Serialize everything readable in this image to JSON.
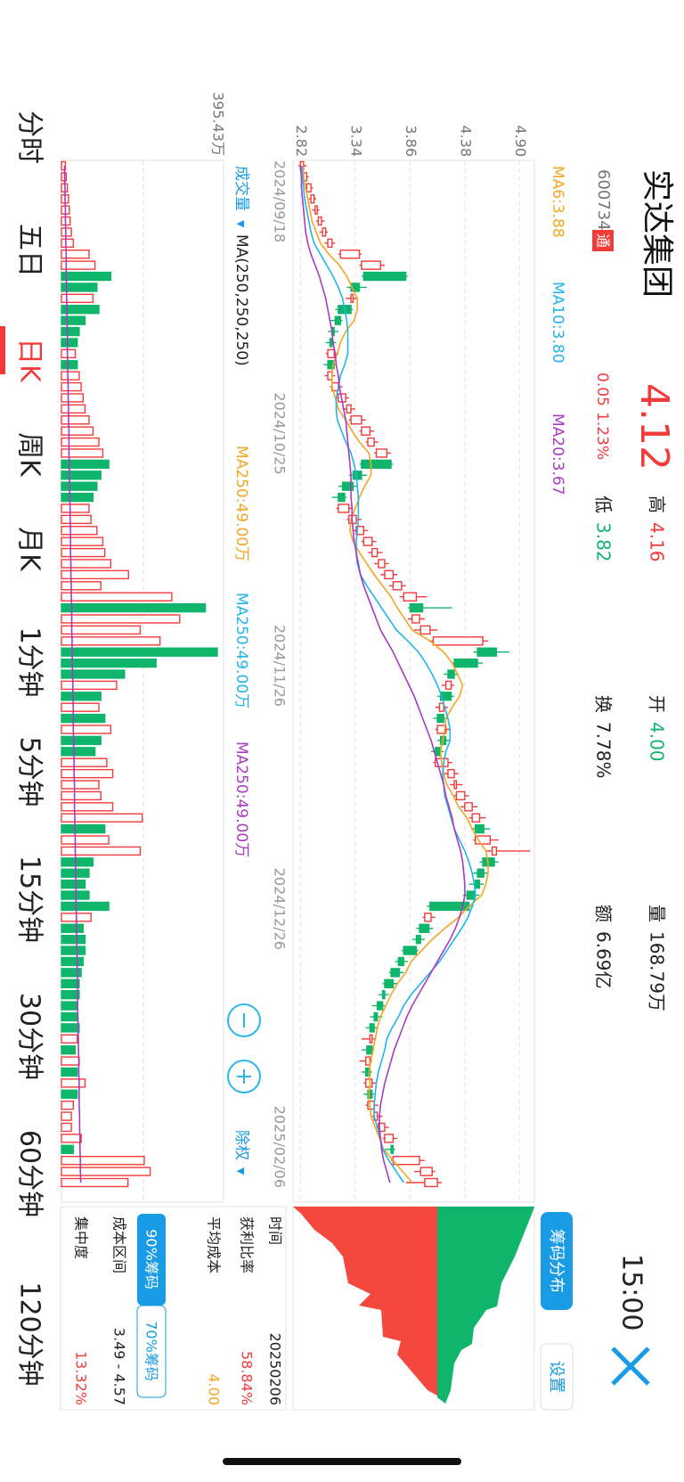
{
  "header": {
    "name": "实达集团",
    "code": "600734",
    "tag": "通",
    "price": "4.12",
    "change": "0.05",
    "change_pct": "1.23%",
    "high_label": "高",
    "high": "4.16",
    "low_label": "低",
    "low": "3.82",
    "open_label": "开",
    "open": "4.00",
    "turnover_label": "换",
    "turnover": "7.78%",
    "volume_label": "量",
    "volume": "168.79万",
    "amount_label": "额",
    "amount": "6.69亿",
    "time": "15:00"
  },
  "chart_data": [
    {
      "type": "candlestick",
      "x": [
        "2024/09/18",
        null,
        null,
        null,
        null,
        null,
        null,
        null,
        null,
        null,
        null,
        null,
        null,
        null,
        null,
        null,
        null,
        null,
        null,
        null,
        null,
        "2024/10/25",
        null,
        null,
        null,
        null,
        null,
        null,
        null,
        null,
        null,
        null,
        null,
        null,
        null,
        null,
        null,
        null,
        null,
        null,
        null,
        null,
        "2024/11/26",
        null,
        null,
        null,
        null,
        null,
        null,
        null,
        null,
        null,
        null,
        null,
        null,
        null,
        null,
        null,
        null,
        null,
        null,
        null,
        null,
        null,
        "2024/12/26",
        null,
        null,
        null,
        null,
        null,
        null,
        null,
        null,
        null,
        null,
        null,
        null,
        null,
        null,
        null,
        null,
        null,
        null,
        null,
        null,
        null,
        null,
        null,
        null,
        null,
        null,
        null,
        "2025/02/06"
      ],
      "candles": [
        [
          2.82,
          2.88,
          2.8,
          2.85
        ],
        [
          2.85,
          2.9,
          2.83,
          2.88
        ],
        [
          2.88,
          2.94,
          2.86,
          2.92
        ],
        [
          2.92,
          2.97,
          2.9,
          2.95
        ],
        [
          2.96,
          3.0,
          2.93,
          2.98
        ],
        [
          2.99,
          3.05,
          2.97,
          3.02
        ],
        [
          3.03,
          3.08,
          3.0,
          3.06
        ],
        [
          3.08,
          3.15,
          3.05,
          3.12
        ],
        [
          3.2,
          3.4,
          3.18,
          3.38
        ],
        [
          3.4,
          3.62,
          3.38,
          3.58
        ],
        [
          3.82,
          3.84,
          3.4,
          3.42
        ],
        [
          3.38,
          3.45,
          3.26,
          3.3
        ],
        [
          3.3,
          3.36,
          3.25,
          3.32
        ],
        [
          3.3,
          3.32,
          3.15,
          3.18
        ],
        [
          3.2,
          3.22,
          3.1,
          3.15
        ],
        [
          3.14,
          3.18,
          3.08,
          3.12
        ],
        [
          3.12,
          3.16,
          3.06,
          3.1
        ],
        [
          3.08,
          3.18,
          3.06,
          3.14
        ],
        [
          3.14,
          3.16,
          3.04,
          3.08
        ],
        [
          3.08,
          3.15,
          3.05,
          3.12
        ],
        [
          3.12,
          3.22,
          3.1,
          3.18
        ],
        [
          3.18,
          3.28,
          3.16,
          3.25
        ],
        [
          3.26,
          3.34,
          3.22,
          3.3
        ],
        [
          3.3,
          3.44,
          3.28,
          3.4
        ],
        [
          3.4,
          3.52,
          3.38,
          3.48
        ],
        [
          3.46,
          3.56,
          3.44,
          3.52
        ],
        [
          3.54,
          3.68,
          3.52,
          3.64
        ],
        [
          3.68,
          3.7,
          3.38,
          3.4
        ],
        [
          3.4,
          3.45,
          3.28,
          3.32
        ],
        [
          3.32,
          3.36,
          3.18,
          3.22
        ],
        [
          3.24,
          3.26,
          3.12,
          3.18
        ],
        [
          3.18,
          3.32,
          3.16,
          3.28
        ],
        [
          3.28,
          3.4,
          3.26,
          3.35
        ],
        [
          3.35,
          3.46,
          3.32,
          3.42
        ],
        [
          3.42,
          3.54,
          3.4,
          3.5
        ],
        [
          3.5,
          3.6,
          3.46,
          3.55
        ],
        [
          3.56,
          3.66,
          3.52,
          3.62
        ],
        [
          3.62,
          3.74,
          3.58,
          3.7
        ],
        [
          3.7,
          3.82,
          3.66,
          3.78
        ],
        [
          3.8,
          4.02,
          3.76,
          3.92
        ],
        [
          3.98,
          4.26,
          3.84,
          3.86
        ],
        [
          3.88,
          4.0,
          3.84,
          3.95
        ],
        [
          3.96,
          4.12,
          3.9,
          4.05
        ],
        [
          4.08,
          4.6,
          4.04,
          4.55
        ],
        [
          4.68,
          4.8,
          4.46,
          4.5
        ],
        [
          4.5,
          4.55,
          4.25,
          4.28
        ],
        [
          4.28,
          4.32,
          4.18,
          4.22
        ],
        [
          4.2,
          4.28,
          4.16,
          4.25
        ],
        [
          4.25,
          4.28,
          4.12,
          4.15
        ],
        [
          4.14,
          4.22,
          4.1,
          4.18
        ],
        [
          4.18,
          4.22,
          4.08,
          4.12
        ],
        [
          4.12,
          4.24,
          4.1,
          4.2
        ],
        [
          4.2,
          4.24,
          4.12,
          4.15
        ],
        [
          4.15,
          4.18,
          4.06,
          4.1
        ],
        [
          4.1,
          4.26,
          4.08,
          4.22
        ],
        [
          4.22,
          4.32,
          4.18,
          4.28
        ],
        [
          4.28,
          4.36,
          4.24,
          4.3
        ],
        [
          4.3,
          4.42,
          4.28,
          4.38
        ],
        [
          4.38,
          4.5,
          4.34,
          4.45
        ],
        [
          4.45,
          4.58,
          4.42,
          4.52
        ],
        [
          4.56,
          4.62,
          4.44,
          4.48
        ],
        [
          4.48,
          4.7,
          4.46,
          4.62
        ],
        [
          4.64,
          5.0,
          4.58,
          4.68
        ],
        [
          4.66,
          4.7,
          4.52,
          4.55
        ],
        [
          4.56,
          4.6,
          4.46,
          4.5
        ],
        [
          4.52,
          4.56,
          4.42,
          4.48
        ],
        [
          4.48,
          4.52,
          4.36,
          4.4
        ],
        [
          4.42,
          4.46,
          4.02,
          4.05
        ],
        [
          4.0,
          4.1,
          3.98,
          4.06
        ],
        [
          4.04,
          4.08,
          3.92,
          3.95
        ],
        [
          3.96,
          4.0,
          3.88,
          3.92
        ],
        [
          3.92,
          3.94,
          3.78,
          3.8
        ],
        [
          3.8,
          3.84,
          3.72,
          3.75
        ],
        [
          3.76,
          3.8,
          3.66,
          3.68
        ],
        [
          3.7,
          3.74,
          3.6,
          3.62
        ],
        [
          3.62,
          3.66,
          3.56,
          3.6
        ],
        [
          3.6,
          3.62,
          3.5,
          3.55
        ],
        [
          3.55,
          3.6,
          3.48,
          3.52
        ],
        [
          3.52,
          3.56,
          3.44,
          3.48
        ],
        [
          3.48,
          3.54,
          3.4,
          3.5
        ],
        [
          3.5,
          3.52,
          3.4,
          3.45
        ],
        [
          3.44,
          3.5,
          3.38,
          3.48
        ],
        [
          3.48,
          3.5,
          3.4,
          3.44
        ],
        [
          3.44,
          3.54,
          3.42,
          3.5
        ],
        [
          3.5,
          3.52,
          3.42,
          3.46
        ],
        [
          3.46,
          3.56,
          3.44,
          3.52
        ],
        [
          3.52,
          3.6,
          3.5,
          3.55
        ],
        [
          3.56,
          3.66,
          3.54,
          3.62
        ],
        [
          3.62,
          3.74,
          3.6,
          3.7
        ],
        [
          3.7,
          3.72,
          3.62,
          3.68
        ],
        [
          3.7,
          4.0,
          3.68,
          3.95
        ],
        [
          3.96,
          4.1,
          3.9,
          4.07
        ],
        [
          4.0,
          4.16,
          3.82,
          4.12
        ]
      ],
      "up_color": "#f23b3b",
      "down_color": "#10b56c",
      "series": [
        {
          "name": "MA6:3.88",
          "color": "#f5a623",
          "values": [
            2.84,
            2.85,
            2.87,
            2.89,
            2.91,
            2.93,
            2.97,
            3.01,
            3.09,
            3.19,
            3.26,
            3.31,
            3.36,
            3.36,
            3.33,
            3.25,
            3.2,
            3.17,
            3.13,
            3.12,
            3.12,
            3.15,
            3.18,
            3.25,
            3.31,
            3.38,
            3.47,
            3.49,
            3.49,
            3.43,
            3.38,
            3.34,
            3.3,
            3.29,
            3.32,
            3.38,
            3.45,
            3.52,
            3.6,
            3.68,
            3.74,
            3.81,
            3.88,
            4.05,
            4.18,
            4.26,
            4.31,
            4.36,
            4.33,
            4.26,
            4.2,
            4.19,
            4.17,
            4.15,
            4.16,
            4.18,
            4.21,
            4.27,
            4.32,
            4.4,
            4.45,
            4.51,
            4.58,
            4.6,
            4.6,
            4.58,
            4.54,
            4.42,
            4.32,
            4.19,
            4.07,
            3.97,
            3.87,
            3.82,
            3.74,
            3.68,
            3.63,
            3.58,
            3.55,
            3.53,
            3.51,
            3.49,
            3.47,
            3.48,
            3.47,
            3.48,
            3.49,
            3.53,
            3.57,
            3.61,
            3.7,
            3.79,
            3.88
          ]
        },
        {
          "name": "MA10:3.80",
          "color": "#22b4ea",
          "values": [
            2.83,
            2.84,
            2.85,
            2.86,
            2.88,
            2.9,
            2.92,
            2.95,
            3.01,
            3.07,
            3.13,
            3.18,
            3.22,
            3.24,
            3.26,
            3.27,
            3.27,
            3.27,
            3.24,
            3.2,
            3.18,
            3.16,
            3.16,
            3.17,
            3.21,
            3.25,
            3.3,
            3.33,
            3.35,
            3.36,
            3.37,
            3.37,
            3.37,
            3.36,
            3.35,
            3.35,
            3.36,
            3.39,
            3.45,
            3.52,
            3.59,
            3.66,
            3.73,
            3.84,
            3.94,
            4.01,
            4.07,
            4.12,
            4.16,
            4.19,
            4.22,
            4.24,
            4.24,
            4.2,
            4.18,
            4.17,
            4.18,
            4.19,
            4.22,
            4.25,
            4.28,
            4.33,
            4.38,
            4.42,
            4.45,
            4.47,
            4.48,
            4.45,
            4.41,
            4.35,
            4.28,
            4.21,
            4.14,
            4.05,
            3.96,
            3.87,
            3.8,
            3.75,
            3.69,
            3.64,
            3.62,
            3.59,
            3.56,
            3.54,
            3.53,
            3.52,
            3.52,
            3.55,
            3.58,
            3.6,
            3.66,
            3.73,
            3.8
          ]
        },
        {
          "name": "MA20:3.67",
          "color": "#a93ac2",
          "values": [
            2.82,
            2.83,
            2.83,
            2.84,
            2.85,
            2.86,
            2.87,
            2.89,
            2.92,
            2.96,
            3.0,
            3.03,
            3.06,
            3.08,
            3.1,
            3.12,
            3.13,
            3.15,
            3.16,
            3.18,
            3.19,
            3.21,
            3.23,
            3.25,
            3.26,
            3.27,
            3.28,
            3.29,
            3.3,
            3.3,
            3.3,
            3.31,
            3.31,
            3.32,
            3.33,
            3.35,
            3.37,
            3.39,
            3.42,
            3.46,
            3.5,
            3.54,
            3.58,
            3.64,
            3.7,
            3.75,
            3.8,
            3.85,
            3.9,
            3.94,
            3.98,
            4.02,
            4.06,
            4.09,
            4.12,
            4.15,
            4.18,
            4.2,
            4.23,
            4.26,
            4.28,
            4.31,
            4.34,
            4.36,
            4.37,
            4.38,
            4.38,
            4.36,
            4.33,
            4.29,
            4.24,
            4.18,
            4.12,
            4.06,
            4.0,
            3.94,
            3.88,
            3.83,
            3.79,
            3.75,
            3.71,
            3.68,
            3.65,
            3.62,
            3.6,
            3.58,
            3.57,
            3.57,
            3.58,
            3.59,
            3.61,
            3.64,
            3.67
          ]
        }
      ],
      "ylim": [
        2.75,
        5.04
      ],
      "yticks": [
        2.82,
        3.34,
        3.86,
        4.38,
        {
          "value": 4.9,
          "label": "4.90"
        }
      ],
      "grid": true
    },
    {
      "type": "bar",
      "title": "成交量",
      "legend_title": "MA(250,250,250)",
      "values": [
        10,
        12,
        15,
        18,
        20,
        22,
        25,
        30,
        70,
        85,
        125,
        90,
        80,
        95,
        60,
        45,
        40,
        35,
        40,
        45,
        50,
        55,
        60,
        70,
        80,
        95,
        105,
        120,
        100,
        90,
        80,
        70,
        75,
        90,
        105,
        110,
        125,
        170,
        100,
        280,
        365,
        300,
        200,
        250,
        395.43,
        240,
        160,
        140,
        100,
        95,
        110,
        125,
        100,
        85,
        115,
        130,
        95,
        100,
        130,
        205,
        110,
        120,
        200,
        80,
        70,
        60,
        70,
        120,
        75,
        55,
        60,
        60,
        55,
        50,
        45,
        45,
        40,
        40,
        45,
        40,
        35,
        45,
        40,
        60,
        40,
        30,
        25,
        25,
        50,
        30,
        210,
        225,
        168.79
      ],
      "ylim": [
        0,
        395.43
      ],
      "yticks": [
        {
          "value": 395.43,
          "label": "395.43万"
        }
      ],
      "series": [
        {
          "name": "MA250:49.00万",
          "color": "#f5a623"
        },
        {
          "name": "MA250:49.00万",
          "color": "#22b4ea"
        },
        {
          "name": "MA250:49.00万",
          "color": "#a93ac2",
          "values": [
            8,
            8,
            9,
            9,
            10,
            10,
            11,
            11,
            12,
            12,
            12,
            13,
            13,
            14,
            14,
            15,
            15,
            15,
            16,
            16,
            17,
            17,
            18,
            18,
            19,
            19,
            19,
            20,
            20,
            21,
            21,
            22,
            22,
            23,
            23,
            23,
            24,
            24,
            25,
            25,
            26,
            26,
            26,
            27,
            27,
            28,
            28,
            29,
            29,
            30,
            30,
            30,
            31,
            31,
            32,
            32,
            33,
            33,
            33,
            34,
            34,
            35,
            35,
            36,
            36,
            37,
            37,
            37,
            38,
            38,
            39,
            39,
            40,
            40,
            41,
            41,
            41,
            42,
            42,
            43,
            43,
            44,
            44,
            45,
            45,
            45,
            46,
            46,
            47,
            47,
            48,
            48,
            49
          ]
        }
      ]
    }
  ],
  "controls": {
    "adjust": "除权"
  },
  "tabs": [
    "分时",
    "五日",
    "日K",
    "周K",
    "月K",
    "1分钟",
    "5分钟",
    "15分钟",
    "30分钟",
    "60分钟",
    "120分钟"
  ],
  "active_tab": "日K",
  "chips": {
    "tab": "筹码分布",
    "settings": "设置",
    "rows": [
      [
        "时间",
        "20250206"
      ],
      [
        "获利比率",
        "58.84%"
      ],
      [
        "平均成本",
        "4.00"
      ]
    ],
    "buttons": [
      "90%筹码",
      "70%筹码"
    ],
    "rows2": [
      [
        "成本区间",
        "3.49 - 4.57"
      ],
      [
        "集中度",
        "13.32%"
      ]
    ]
  }
}
